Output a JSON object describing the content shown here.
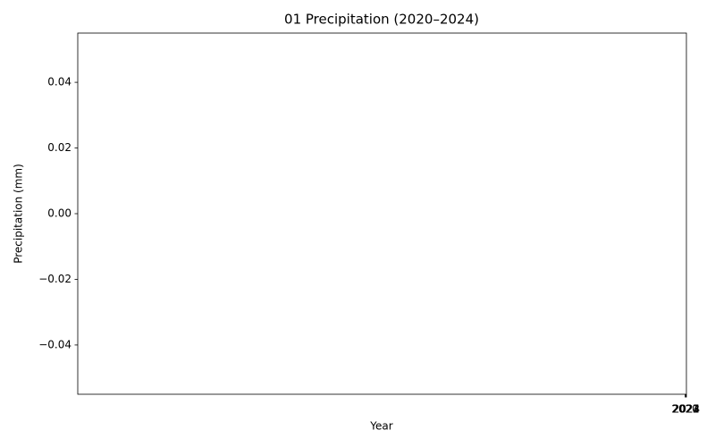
{
  "chart_data": {
    "type": "line",
    "title": "01 Precipitation (2020–2024)",
    "x_label": "Year",
    "y_label": "Precipitation (mm)",
    "xlim": [
      -0.055,
      2024
    ],
    "xticks": [
      2020,
      2021,
      2022,
      2023,
      2024
    ],
    "ylim": [
      -0.055,
      0.055
    ],
    "yticks": [
      {
        "value": -0.04,
        "label": "−0.04"
      },
      {
        "value": -0.02,
        "label": "−0.02"
      },
      {
        "value": 0,
        "label": "0.00"
      },
      0.02,
      0.04
    ]
  }
}
